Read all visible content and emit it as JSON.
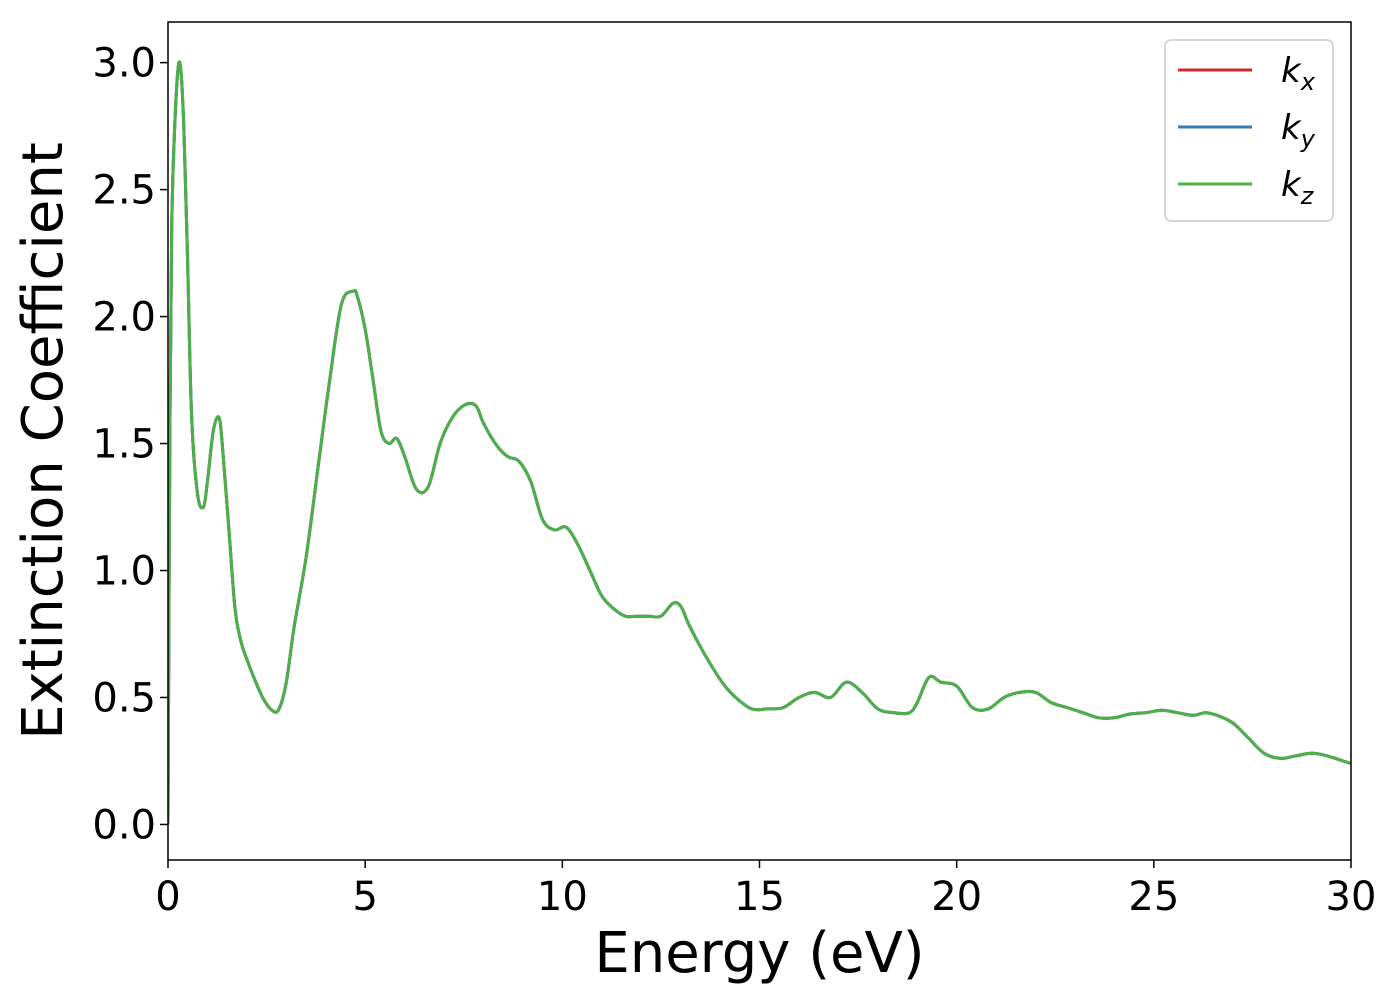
{
  "chart_data": {
    "type": "line",
    "xlabel": "Energy (eV)",
    "ylabel": "Extinction Coefficient",
    "xlim": [
      0,
      30
    ],
    "ylim": [
      -0.14,
      3.16
    ],
    "xticks": [
      0,
      5,
      10,
      15,
      20,
      25,
      30
    ],
    "yticks": [
      0.0,
      0.5,
      1.0,
      1.5,
      2.0,
      2.5,
      3.0
    ],
    "xtick_labels": [
      "0",
      "5",
      "10",
      "15",
      "20",
      "25",
      "30"
    ],
    "ytick_labels": [
      "0.0",
      "0.5",
      "1.0",
      "1.5",
      "2.0",
      "2.5",
      "3.0"
    ],
    "grid": false,
    "legend_position": "top-right",
    "series": [
      {
        "name": "k",
        "subscript": "x",
        "color": "#d62728"
      },
      {
        "name": "k",
        "subscript": "y",
        "color": "#377eb8"
      },
      {
        "name": "k",
        "subscript": "z",
        "color": "#4daf4a"
      }
    ],
    "x": [
      0.0,
      0.05,
      0.1,
      0.2,
      0.3,
      0.4,
      0.5,
      0.6,
      0.75,
      0.9,
      1.0,
      1.15,
      1.3,
      1.4,
      1.55,
      1.7,
      1.85,
      2.0,
      2.2,
      2.4,
      2.6,
      2.8,
      3.0,
      3.2,
      3.5,
      3.8,
      4.1,
      4.4,
      4.7,
      4.8,
      5.0,
      5.2,
      5.4,
      5.6,
      5.8,
      6.0,
      6.3,
      6.6,
      6.9,
      7.2,
      7.5,
      7.8,
      8.0,
      8.3,
      8.6,
      8.9,
      9.2,
      9.5,
      9.8,
      10.1,
      10.4,
      10.7,
      11.0,
      11.3,
      11.6,
      11.9,
      12.2,
      12.5,
      12.8,
      13.0,
      13.2,
      13.5,
      13.8,
      14.1,
      14.4,
      14.8,
      15.2,
      15.6,
      16.0,
      16.4,
      16.8,
      17.2,
      17.6,
      18.0,
      18.4,
      18.8,
      19.0,
      19.3,
      19.6,
      20.0,
      20.4,
      20.8,
      21.2,
      21.6,
      22.0,
      22.4,
      22.8,
      23.2,
      23.6,
      24.0,
      24.4,
      24.8,
      25.2,
      25.6,
      26.0,
      26.3,
      26.6,
      27.0,
      27.4,
      27.8,
      28.2,
      28.6,
      29.0,
      29.4,
      29.8,
      30.0
    ],
    "y": [
      0.0,
      1.6,
      2.4,
      2.85,
      3.0,
      2.75,
      2.2,
      1.6,
      1.3,
      1.25,
      1.35,
      1.55,
      1.6,
      1.45,
      1.15,
      0.85,
      0.72,
      0.65,
      0.57,
      0.5,
      0.455,
      0.45,
      0.56,
      0.78,
      1.05,
      1.4,
      1.75,
      2.05,
      2.1,
      2.08,
      1.95,
      1.75,
      1.55,
      1.5,
      1.52,
      1.45,
      1.32,
      1.33,
      1.5,
      1.6,
      1.65,
      1.65,
      1.58,
      1.5,
      1.45,
      1.43,
      1.35,
      1.2,
      1.16,
      1.17,
      1.1,
      1.0,
      0.9,
      0.85,
      0.82,
      0.82,
      0.82,
      0.82,
      0.87,
      0.86,
      0.79,
      0.7,
      0.62,
      0.55,
      0.5,
      0.455,
      0.455,
      0.46,
      0.5,
      0.52,
      0.5,
      0.56,
      0.52,
      0.455,
      0.44,
      0.44,
      0.48,
      0.58,
      0.56,
      0.545,
      0.46,
      0.455,
      0.5,
      0.52,
      0.52,
      0.48,
      0.46,
      0.44,
      0.42,
      0.42,
      0.435,
      0.44,
      0.45,
      0.44,
      0.43,
      0.44,
      0.43,
      0.4,
      0.34,
      0.28,
      0.26,
      0.27,
      0.28,
      0.27,
      0.25,
      0.24
    ]
  }
}
